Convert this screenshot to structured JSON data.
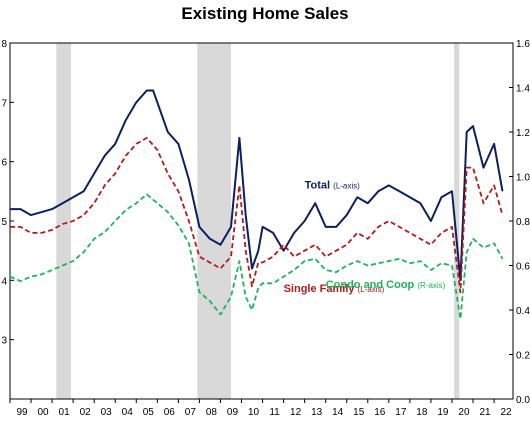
{
  "chart_data": {
    "type": "line",
    "title": "Existing Home Sales",
    "x_range": [
      1999,
      2022.9
    ],
    "x_ticks": [
      "99",
      "00",
      "01",
      "02",
      "03",
      "04",
      "05",
      "06",
      "07",
      "08",
      "09",
      "10",
      "11",
      "12",
      "13",
      "14",
      "15",
      "16",
      "17",
      "18",
      "19",
      "20",
      "21",
      "22"
    ],
    "y_left": {
      "ticks": [
        "3",
        "4",
        "5",
        "6",
        "7",
        "8"
      ],
      "range": [
        2,
        8
      ]
    },
    "y_right": {
      "ticks": [
        "0.0",
        "0.2",
        "0.4",
        "0.6",
        "0.8",
        "1.0",
        "1.2",
        "1.4",
        "1.6"
      ],
      "range": [
        0.0,
        1.6
      ]
    },
    "recessions": [
      [
        2001.2,
        2001.9
      ],
      [
        2007.9,
        2009.5
      ],
      [
        2020.1,
        2020.35
      ]
    ],
    "series": [
      {
        "name": "Total",
        "axis_note": "(L-axis)",
        "axis": "left",
        "style": "solid",
        "color": "#0c1f5e",
        "points": [
          [
            1999.0,
            5.2
          ],
          [
            1999.5,
            5.2
          ],
          [
            2000.0,
            5.1
          ],
          [
            2000.5,
            5.15
          ],
          [
            2001.0,
            5.2
          ],
          [
            2001.5,
            5.3
          ],
          [
            2002.0,
            5.4
          ],
          [
            2002.5,
            5.5
          ],
          [
            2003.0,
            5.8
          ],
          [
            2003.5,
            6.1
          ],
          [
            2004.0,
            6.3
          ],
          [
            2004.5,
            6.7
          ],
          [
            2005.0,
            7.0
          ],
          [
            2005.5,
            7.2
          ],
          [
            2005.8,
            7.2
          ],
          [
            2006.0,
            7.0
          ],
          [
            2006.5,
            6.5
          ],
          [
            2007.0,
            6.3
          ],
          [
            2007.5,
            5.7
          ],
          [
            2008.0,
            4.9
          ],
          [
            2008.5,
            4.7
          ],
          [
            2009.0,
            4.6
          ],
          [
            2009.5,
            4.9
          ],
          [
            2009.9,
            6.4
          ],
          [
            2010.2,
            5.1
          ],
          [
            2010.5,
            4.2
          ],
          [
            2010.8,
            4.5
          ],
          [
            2011.0,
            4.9
          ],
          [
            2011.5,
            4.8
          ],
          [
            2012.0,
            4.5
          ],
          [
            2012.5,
            4.8
          ],
          [
            2013.0,
            5.0
          ],
          [
            2013.5,
            5.3
          ],
          [
            2014.0,
            4.9
          ],
          [
            2014.5,
            4.9
          ],
          [
            2015.0,
            5.1
          ],
          [
            2015.5,
            5.4
          ],
          [
            2016.0,
            5.3
          ],
          [
            2016.5,
            5.5
          ],
          [
            2017.0,
            5.6
          ],
          [
            2017.5,
            5.5
          ],
          [
            2018.0,
            5.4
          ],
          [
            2018.5,
            5.3
          ],
          [
            2019.0,
            5.0
          ],
          [
            2019.5,
            5.4
          ],
          [
            2020.0,
            5.5
          ],
          [
            2020.4,
            4.0
          ],
          [
            2020.7,
            6.5
          ],
          [
            2021.0,
            6.6
          ],
          [
            2021.5,
            5.9
          ],
          [
            2022.0,
            6.3
          ],
          [
            2022.4,
            5.5
          ]
        ]
      },
      {
        "name": "Single Family",
        "axis_note": "(L-axis)",
        "axis": "left",
        "style": "dashed",
        "color": "#b01c1c",
        "points": [
          [
            1999.0,
            4.9
          ],
          [
            1999.5,
            4.9
          ],
          [
            2000.0,
            4.8
          ],
          [
            2000.5,
            4.8
          ],
          [
            2001.0,
            4.85
          ],
          [
            2001.5,
            4.95
          ],
          [
            2002.0,
            5.0
          ],
          [
            2002.5,
            5.1
          ],
          [
            2003.0,
            5.3
          ],
          [
            2003.5,
            5.6
          ],
          [
            2004.0,
            5.8
          ],
          [
            2004.5,
            6.1
          ],
          [
            2005.0,
            6.3
          ],
          [
            2005.5,
            6.4
          ],
          [
            2006.0,
            6.2
          ],
          [
            2006.5,
            5.8
          ],
          [
            2007.0,
            5.5
          ],
          [
            2007.5,
            5.0
          ],
          [
            2008.0,
            4.4
          ],
          [
            2008.5,
            4.3
          ],
          [
            2009.0,
            4.2
          ],
          [
            2009.5,
            4.4
          ],
          [
            2009.9,
            5.6
          ],
          [
            2010.2,
            4.5
          ],
          [
            2010.5,
            3.9
          ],
          [
            2010.8,
            4.3
          ],
          [
            2011.0,
            4.3
          ],
          [
            2011.5,
            4.4
          ],
          [
            2012.0,
            4.6
          ],
          [
            2012.5,
            4.4
          ],
          [
            2013.0,
            4.5
          ],
          [
            2013.5,
            4.6
          ],
          [
            2014.0,
            4.4
          ],
          [
            2014.5,
            4.5
          ],
          [
            2015.0,
            4.6
          ],
          [
            2015.5,
            4.8
          ],
          [
            2016.0,
            4.7
          ],
          [
            2016.5,
            4.9
          ],
          [
            2017.0,
            5.0
          ],
          [
            2017.5,
            4.9
          ],
          [
            2018.0,
            4.8
          ],
          [
            2018.5,
            4.7
          ],
          [
            2019.0,
            4.6
          ],
          [
            2019.5,
            4.8
          ],
          [
            2020.0,
            4.9
          ],
          [
            2020.4,
            3.8
          ],
          [
            2020.7,
            5.9
          ],
          [
            2021.0,
            5.9
          ],
          [
            2021.5,
            5.3
          ],
          [
            2022.0,
            5.6
          ],
          [
            2022.4,
            5.1
          ]
        ]
      },
      {
        "name": "Condo and Coop",
        "axis_note": "(R-axis)",
        "axis": "right",
        "style": "dashed",
        "color": "#1fb35a",
        "points": [
          [
            1999.0,
            0.55
          ],
          [
            1999.5,
            0.53
          ],
          [
            2000.0,
            0.55
          ],
          [
            2000.5,
            0.56
          ],
          [
            2001.0,
            0.58
          ],
          [
            2001.5,
            0.6
          ],
          [
            2002.0,
            0.62
          ],
          [
            2002.5,
            0.66
          ],
          [
            2003.0,
            0.72
          ],
          [
            2003.5,
            0.75
          ],
          [
            2004.0,
            0.8
          ],
          [
            2004.5,
            0.85
          ],
          [
            2005.0,
            0.88
          ],
          [
            2005.5,
            0.92
          ],
          [
            2006.0,
            0.88
          ],
          [
            2006.5,
            0.84
          ],
          [
            2007.0,
            0.78
          ],
          [
            2007.5,
            0.7
          ],
          [
            2008.0,
            0.48
          ],
          [
            2008.5,
            0.44
          ],
          [
            2009.0,
            0.38
          ],
          [
            2009.5,
            0.46
          ],
          [
            2009.9,
            0.62
          ],
          [
            2010.2,
            0.46
          ],
          [
            2010.5,
            0.4
          ],
          [
            2010.8,
            0.5
          ],
          [
            2011.0,
            0.52
          ],
          [
            2011.5,
            0.52
          ],
          [
            2012.0,
            0.55
          ],
          [
            2012.5,
            0.58
          ],
          [
            2013.0,
            0.62
          ],
          [
            2013.5,
            0.63
          ],
          [
            2014.0,
            0.58
          ],
          [
            2014.5,
            0.57
          ],
          [
            2015.0,
            0.6
          ],
          [
            2015.5,
            0.62
          ],
          [
            2016.0,
            0.6
          ],
          [
            2016.5,
            0.61
          ],
          [
            2017.0,
            0.62
          ],
          [
            2017.5,
            0.63
          ],
          [
            2018.0,
            0.61
          ],
          [
            2018.5,
            0.62
          ],
          [
            2019.0,
            0.58
          ],
          [
            2019.5,
            0.61
          ],
          [
            2020.0,
            0.6
          ],
          [
            2020.4,
            0.36
          ],
          [
            2020.7,
            0.66
          ],
          [
            2021.0,
            0.72
          ],
          [
            2021.5,
            0.68
          ],
          [
            2022.0,
            0.7
          ],
          [
            2022.4,
            0.63
          ]
        ]
      }
    ],
    "annotations": [
      {
        "text": "Total",
        "note": "(L-axis)",
        "color": "#0c1f5e",
        "at": [
          2013.0,
          5.55
        ]
      },
      {
        "text": "Single Family",
        "note": "(L-axis)",
        "color": "#b01c1c",
        "at": [
          2012.0,
          3.8
        ]
      },
      {
        "text": "Condo and Coop",
        "note": "(R-axis)",
        "color": "#1fb35a",
        "at": [
          2014.0,
          0.5
        ]
      }
    ],
    "grid": false
  }
}
